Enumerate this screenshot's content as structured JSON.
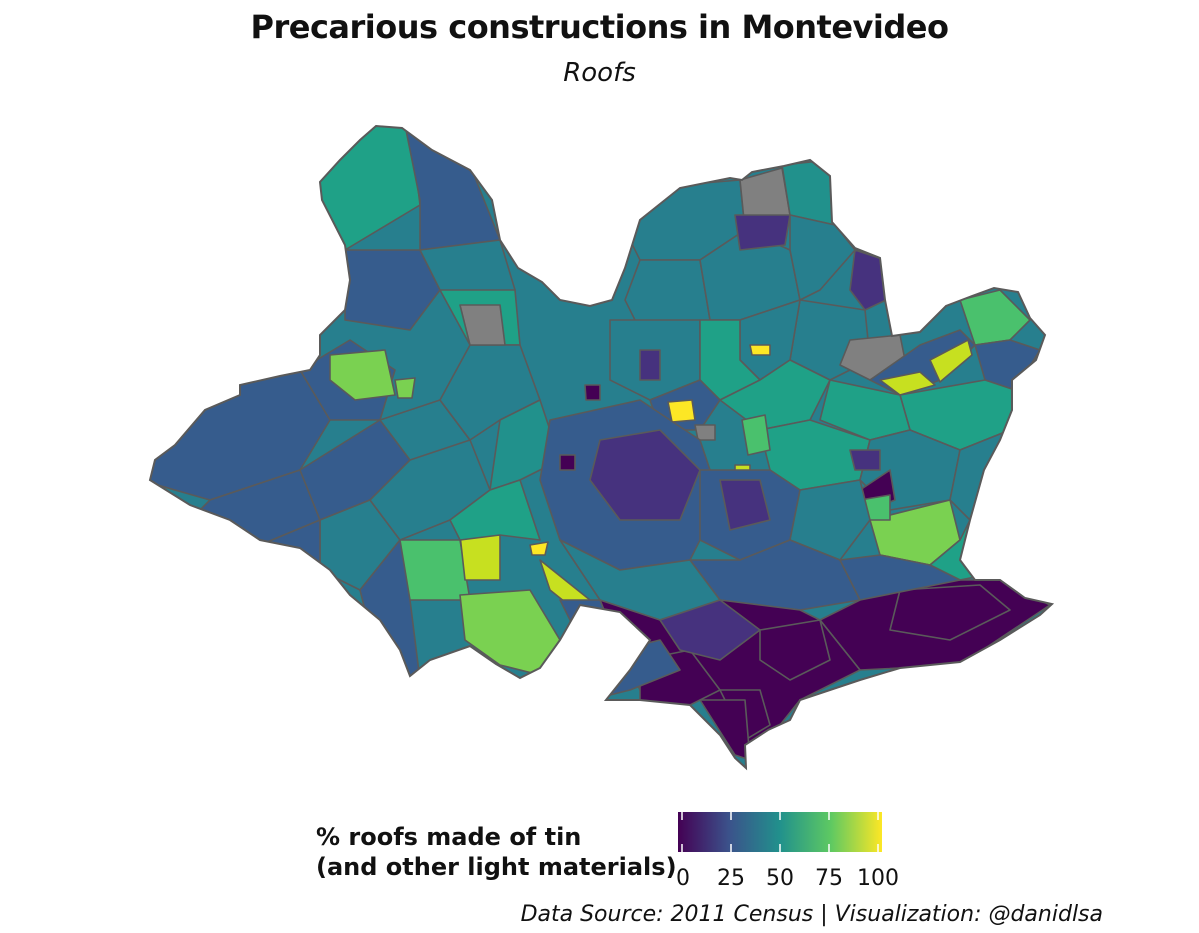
{
  "title": "Precarious constructions in Montevideo",
  "subtitle": "Roofs",
  "legend": {
    "title_line1": "% roofs made of tin",
    "title_line2": "(and other light materials)",
    "ticks": [
      "0",
      "25",
      "50",
      "75",
      "100"
    ],
    "scale": "viridis",
    "colors": [
      "#440154",
      "#3b528b",
      "#21918c",
      "#5ec962",
      "#fde725"
    ],
    "na_color": "#808080"
  },
  "caption": "Data Source: 2011 Census | Visualization: @danidlsa"
}
